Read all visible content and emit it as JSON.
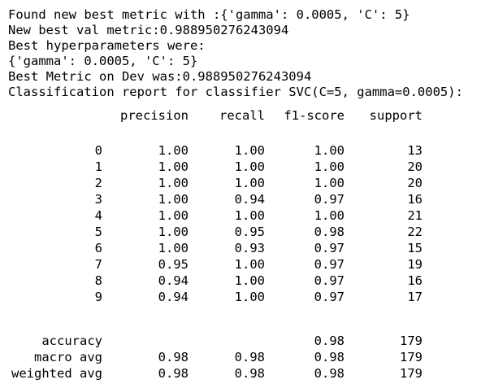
{
  "output": {
    "lines": [
      "Found new best metric with :{'gamma': 0.0005, 'C': 5}",
      "New best val metric:0.988950276243094",
      "Best hyperparameters were:",
      "{'gamma': 0.0005, 'C': 5}",
      "Best Metric on Dev was:0.988950276243094",
      "Classification report for classifier SVC(C=5, gamma=0.0005):"
    ]
  },
  "report": {
    "headers": [
      "precision",
      "recall",
      "f1-score",
      "support"
    ],
    "rows": [
      {
        "label": "0",
        "precision": "1.00",
        "recall": "1.00",
        "f1": "1.00",
        "support": "13"
      },
      {
        "label": "1",
        "precision": "1.00",
        "recall": "1.00",
        "f1": "1.00",
        "support": "20"
      },
      {
        "label": "2",
        "precision": "1.00",
        "recall": "1.00",
        "f1": "1.00",
        "support": "20"
      },
      {
        "label": "3",
        "precision": "1.00",
        "recall": "0.94",
        "f1": "0.97",
        "support": "16"
      },
      {
        "label": "4",
        "precision": "1.00",
        "recall": "1.00",
        "f1": "1.00",
        "support": "21"
      },
      {
        "label": "5",
        "precision": "1.00",
        "recall": "0.95",
        "f1": "0.98",
        "support": "22"
      },
      {
        "label": "6",
        "precision": "1.00",
        "recall": "0.93",
        "f1": "0.97",
        "support": "15"
      },
      {
        "label": "7",
        "precision": "0.95",
        "recall": "1.00",
        "f1": "0.97",
        "support": "19"
      },
      {
        "label": "8",
        "precision": "0.94",
        "recall": "1.00",
        "f1": "0.97",
        "support": "16"
      },
      {
        "label": "9",
        "precision": "0.94",
        "recall": "1.00",
        "f1": "0.97",
        "support": "17"
      }
    ],
    "summary": [
      {
        "label": "accuracy",
        "precision": "",
        "recall": "",
        "f1": "0.98",
        "support": "179"
      },
      {
        "label": "macro avg",
        "precision": "0.98",
        "recall": "0.98",
        "f1": "0.98",
        "support": "179"
      },
      {
        "label": "weighted avg",
        "precision": "0.98",
        "recall": "0.98",
        "f1": "0.98",
        "support": "179"
      }
    ]
  }
}
